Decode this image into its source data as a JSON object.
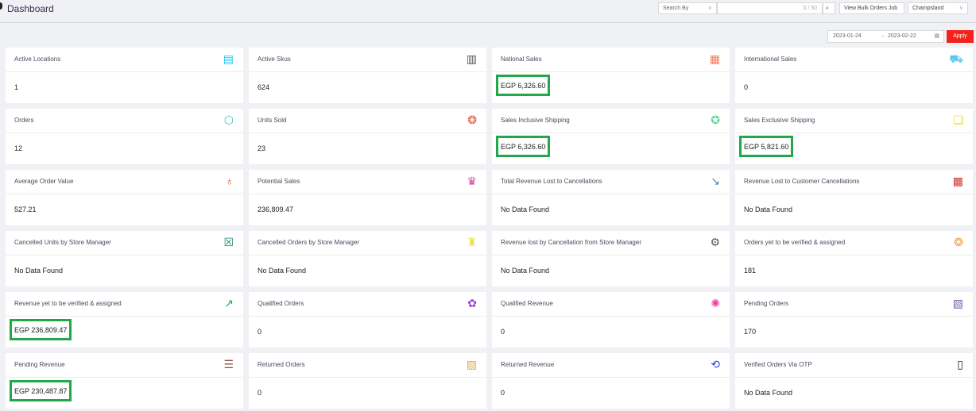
{
  "header": {
    "title": "Dashboard",
    "search_by": "Search By",
    "search_value": "",
    "search_count": "0 / 50",
    "bulk_button": "View Bulk Orders Job",
    "store_select": "Champsland"
  },
  "date_range": {
    "start": "2023-01-24",
    "arrow": "→",
    "end": "2023-02-22",
    "apply": "Apply"
  },
  "colors": {
    "apply": "#f5221b",
    "highlight": "#21a84a"
  },
  "cards": [
    {
      "label": "Active Locations",
      "value": "1",
      "icon": "store-icon",
      "icon_glyph": "▤",
      "icon_color": "#22c3e6",
      "highlight": false
    },
    {
      "label": "Active Skus",
      "value": "624",
      "icon": "barcode-icon",
      "icon_glyph": "▥",
      "icon_color": "#555555",
      "highlight": false
    },
    {
      "label": "National Sales",
      "value": "EGP 6,326.60",
      "icon": "calendar-store-icon",
      "icon_glyph": "▦",
      "icon_color": "#f07a5a",
      "highlight": true
    },
    {
      "label": "International Sales",
      "value": "0",
      "icon": "cart-icon",
      "icon_glyph": "⛟",
      "icon_color": "#5cc9ef",
      "highlight": false
    },
    {
      "label": "Orders",
      "value": "12",
      "icon": "box-icon",
      "icon_glyph": "⬡",
      "icon_color": "#3cc7b0",
      "highlight": false
    },
    {
      "label": "Units Sold",
      "value": "23",
      "icon": "coins-icon",
      "icon_glyph": "❂",
      "icon_color": "#e2553e",
      "highlight": false
    },
    {
      "label": "Sales Inclusive Shipping",
      "value": "EGP 6,326.60",
      "icon": "badge-icon",
      "icon_glyph": "✪",
      "icon_color": "#5ed39a",
      "highlight": true
    },
    {
      "label": "Sales Exclusive Shipping",
      "value": "EGP 5,821.60",
      "icon": "documents-icon",
      "icon_glyph": "❏",
      "icon_color": "#e4e02a",
      "highlight": true
    },
    {
      "label": "Average Order Value",
      "value": "527.21",
      "icon": "money-bag-icon",
      "icon_glyph": "♁",
      "icon_color": "#e85a2c",
      "highlight": false
    },
    {
      "label": "Potential Sales",
      "value": "236,809.47",
      "icon": "chart-board-icon",
      "icon_glyph": "♛",
      "icon_color": "#e0389a",
      "highlight": false
    },
    {
      "label": "Total Revenue Lost to Cancellations",
      "value": "No Data Found",
      "icon": "chart-down-icon",
      "icon_glyph": "↘",
      "icon_color": "#3d8fa8",
      "highlight": false
    },
    {
      "label": "Revenue Lost to Customer Cancellations",
      "value": "No Data Found",
      "icon": "revenue-loss-icon",
      "icon_glyph": "▩",
      "icon_color": "#d43a3a",
      "highlight": false
    },
    {
      "label": "Cancelled Units by Store Manager",
      "value": "No Data Found",
      "icon": "cancel-calendar-icon",
      "icon_glyph": "☒",
      "icon_color": "#1e8a6a",
      "highlight": false
    },
    {
      "label": "Cancelled Orders by Store Manager",
      "value": "No Data Found",
      "icon": "cancel-bag-icon",
      "icon_glyph": "♜",
      "icon_color": "#e6e24a",
      "highlight": false
    },
    {
      "label": "Revenue lost by Cancellation from Store Manager",
      "value": "No Data Found",
      "icon": "gear-coin-icon",
      "icon_glyph": "⚙",
      "icon_color": "#555555",
      "highlight": false
    },
    {
      "label": "Orders yet to be verified & assigned",
      "value": "181",
      "icon": "coins-stack-icon",
      "icon_glyph": "❂",
      "icon_color": "#f0a040",
      "highlight": false
    },
    {
      "label": "Revenue yet to be verified & assigned",
      "value": "EGP 236,809.47",
      "icon": "growth-icon",
      "icon_glyph": "↗",
      "icon_color": "#1ea86a",
      "highlight": true
    },
    {
      "label": "Qualified Orders",
      "value": "0",
      "icon": "qualified-icon",
      "icon_glyph": "✿",
      "icon_color": "#a23ad0",
      "highlight": false
    },
    {
      "label": "Qualified Revenue",
      "value": "0",
      "icon": "revenue-cycle-icon",
      "icon_glyph": "✺",
      "icon_color": "#e84a9a",
      "highlight": false
    },
    {
      "label": "Pending Orders",
      "value": "170",
      "icon": "pending-box-icon",
      "icon_glyph": "▧",
      "icon_color": "#7a5aa8",
      "highlight": false
    },
    {
      "label": "Pending Revenue",
      "value": "EGP 230,487.87",
      "icon": "cash-hand-icon",
      "icon_glyph": "☰",
      "icon_color": "#8a5a4a",
      "highlight": true
    },
    {
      "label": "Returned Orders",
      "value": "0",
      "icon": "return-box-icon",
      "icon_glyph": "▨",
      "icon_color": "#f0a830",
      "highlight": false
    },
    {
      "label": "Returned Revenue",
      "value": "0",
      "icon": "return-money-icon",
      "icon_glyph": "⟲",
      "icon_color": "#3a3ae0",
      "highlight": false
    },
    {
      "label": "Verified Orders Via OTP",
      "value": "No Data Found",
      "icon": "phone-otp-icon",
      "icon_glyph": "▯",
      "icon_color": "#222222",
      "highlight": false
    }
  ]
}
